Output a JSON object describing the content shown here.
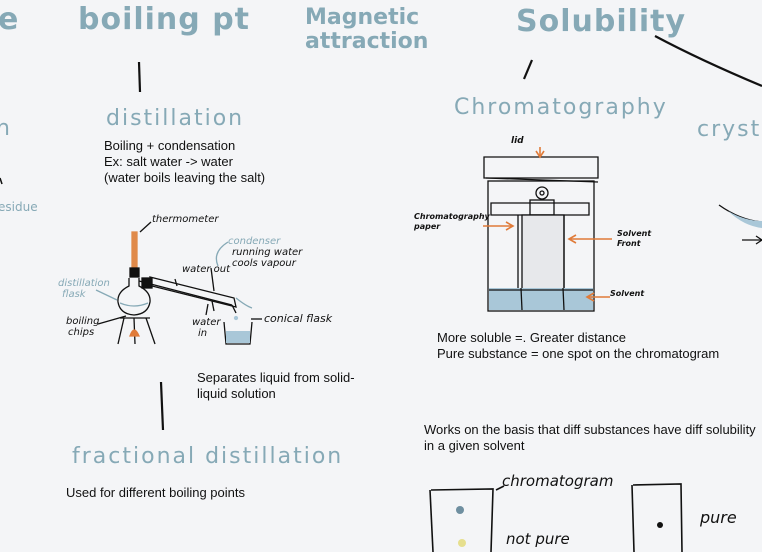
{
  "headings": {
    "boiling_pt": "boiling pt",
    "magnetic": "Magnetic attraction",
    "solubility": "Solubility",
    "distillation": "distillation",
    "chromatography": "Chromatography",
    "crystal_fragment": "crystal",
    "fractional": "fractional distillation",
    "left_fragment_top": "e",
    "left_fragment_mid": "n",
    "left_fragment_residue": "esidue"
  },
  "distillation_notes": {
    "line1": "Boiling + condensation",
    "line2": "Ex: salt water -> water",
    "line3": "(water boils leaving the salt)",
    "separates1": "Separates liquid from solid-",
    "separates2": "liquid solution"
  },
  "distillation_labels": {
    "thermometer": "thermometer",
    "condenser": "condenser",
    "running_water": "running water",
    "cools_vapour": "cools vapour",
    "water_out": "water out",
    "water_in_1": "water",
    "water_in_2": "in",
    "conical_flask": "conical flask",
    "distillation_flask_1": "distillation",
    "distillation_flask_2": "flask",
    "boiling_chips_1": "boiling",
    "boiling_chips_2": "chips"
  },
  "chromatography_labels": {
    "lid": "lid",
    "paper_1": "Chromatography",
    "paper_2": "paper",
    "solvent_front_1": "Solvent",
    "solvent_front_2": "Front",
    "solvent": "Solvent"
  },
  "chromatography_notes": {
    "more_soluble": "More soluble =. Greater distance",
    "pure_substance": "Pure substance = one spot on the chromatogram",
    "basis_1": "Works on the basis that diff substances have diff solubility",
    "basis_2": "in a given solvent"
  },
  "chromatogram_labels": {
    "chromatogram": "chromatogram",
    "not_pure": "not pure",
    "pure": "pure"
  },
  "fractional_note": "Used for different boiling points",
  "colors": {
    "heading_teal": "#86a9b6",
    "arrow_orange": "#e07b39",
    "solvent_blue": "#a9c7d8",
    "spot_blue": "#6f8fa0",
    "spot_yellow": "#e6df8e"
  }
}
